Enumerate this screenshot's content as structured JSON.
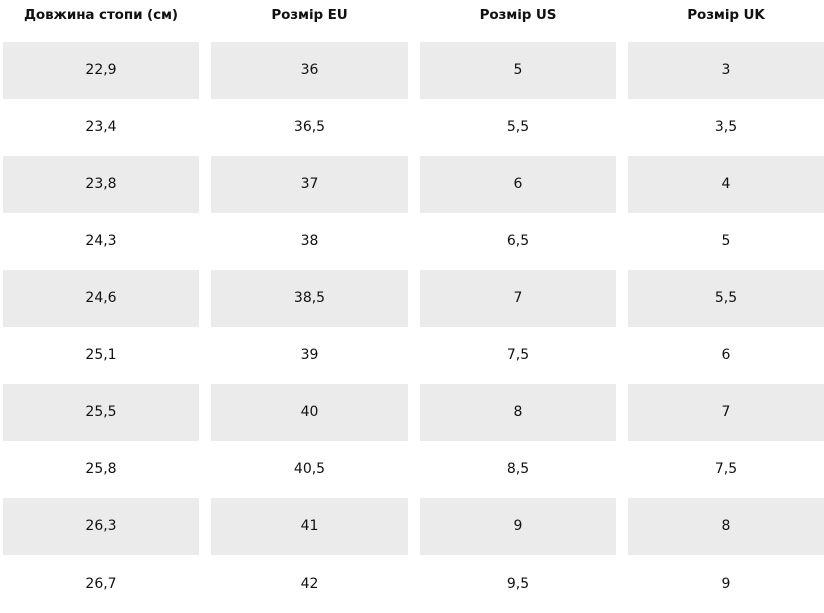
{
  "table": {
    "headers": [
      "Довжина стопи (см)",
      "Розмір EU",
      "Розмір US",
      "Розмір UK"
    ],
    "rows": [
      [
        "22,9",
        "36",
        "5",
        "3"
      ],
      [
        "23,4",
        "36,5",
        "5,5",
        "3,5"
      ],
      [
        "23,8",
        "37",
        "6",
        "4"
      ],
      [
        "24,3",
        "38",
        "6,5",
        "5"
      ],
      [
        "24,6",
        "38,5",
        "7",
        "5,5"
      ],
      [
        "25,1",
        "39",
        "7,5",
        "6"
      ],
      [
        "25,5",
        "40",
        "8",
        "7"
      ],
      [
        "25,8",
        "40,5",
        "8,5",
        "7,5"
      ],
      [
        "26,3",
        "41",
        "9",
        "8"
      ],
      [
        "26,7",
        "42",
        "9,5",
        "9"
      ]
    ],
    "shaded_row_color": "#ebebeb"
  }
}
